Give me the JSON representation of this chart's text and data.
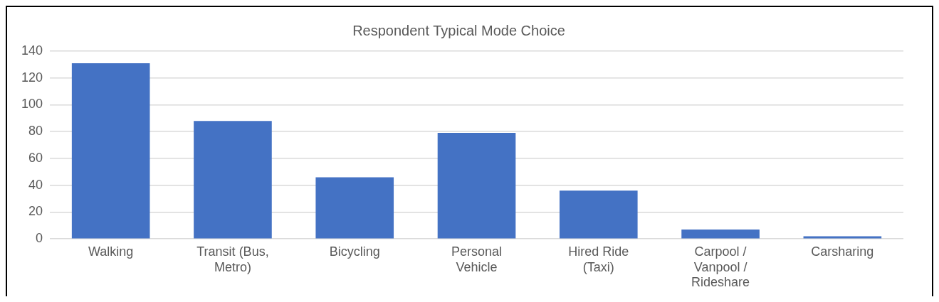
{
  "chart_data": {
    "type": "bar",
    "title": "Respondent Typical Mode Choice",
    "categories": [
      "Walking",
      "Transit (Bus, Metro)",
      "Bicycling",
      "Personal Vehicle",
      "Hired Ride (Taxi)",
      "Carpool / Vanpool / Rideshare",
      "Carsharing"
    ],
    "values": [
      131,
      88,
      46,
      79,
      36,
      7,
      2
    ],
    "color": "#4472c4",
    "ylim": [
      0,
      140
    ],
    "yticks": [
      0,
      20,
      40,
      60,
      80,
      100,
      120,
      140
    ],
    "grid": "y",
    "legend": false
  }
}
